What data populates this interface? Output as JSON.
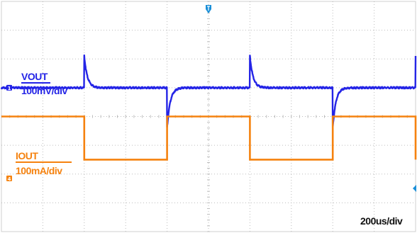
{
  "chart_data": {
    "type": "line",
    "title": "",
    "timebase": "200us/div",
    "grid": true,
    "x_unit": "us",
    "xlim": [
      0,
      2000
    ],
    "divisions": {
      "x": 10,
      "y": 8
    },
    "colors": {
      "ch1": "#2424e6",
      "ch2": "#f5820f",
      "grid": "#cfcfcf",
      "trigger": "#1a8fd8"
    },
    "series": [
      {
        "name": "VOUT",
        "scale": "100mV/div",
        "channel": "1",
        "baseline_div": -1.0,
        "steps": [
          {
            "t_us": 0,
            "level": "low"
          },
          {
            "t_us": 400,
            "level": "high",
            "overshoot_div": 1.1,
            "tau_us": 15
          },
          {
            "t_us": 800,
            "level": "low",
            "overshoot_div": -1.4,
            "tau_us": 15
          },
          {
            "t_us": 1200,
            "level": "high",
            "overshoot_div": 1.1,
            "tau_us": 15
          },
          {
            "t_us": 1600,
            "level": "low",
            "overshoot_div": -1.4,
            "tau_us": 15
          },
          {
            "t_us": 2000,
            "level": "high",
            "overshoot_div": 1.1,
            "tau_us": 15
          }
        ]
      },
      {
        "name": "IOUT",
        "scale": "100mA/div",
        "channel": "4",
        "low_div": 1.5,
        "high_div": 0.0,
        "pulses": [
          {
            "start_us": 0,
            "end_us": 400,
            "level": "high"
          },
          {
            "start_us": 400,
            "end_us": 800,
            "level": "low"
          },
          {
            "start_us": 800,
            "end_us": 1200,
            "level": "high"
          },
          {
            "start_us": 1200,
            "end_us": 1600,
            "level": "low"
          },
          {
            "start_us": 1600,
            "end_us": 2000,
            "level": "high"
          },
          {
            "start_us": 2000,
            "end_us": 2000,
            "level": "low"
          }
        ]
      }
    ]
  }
}
